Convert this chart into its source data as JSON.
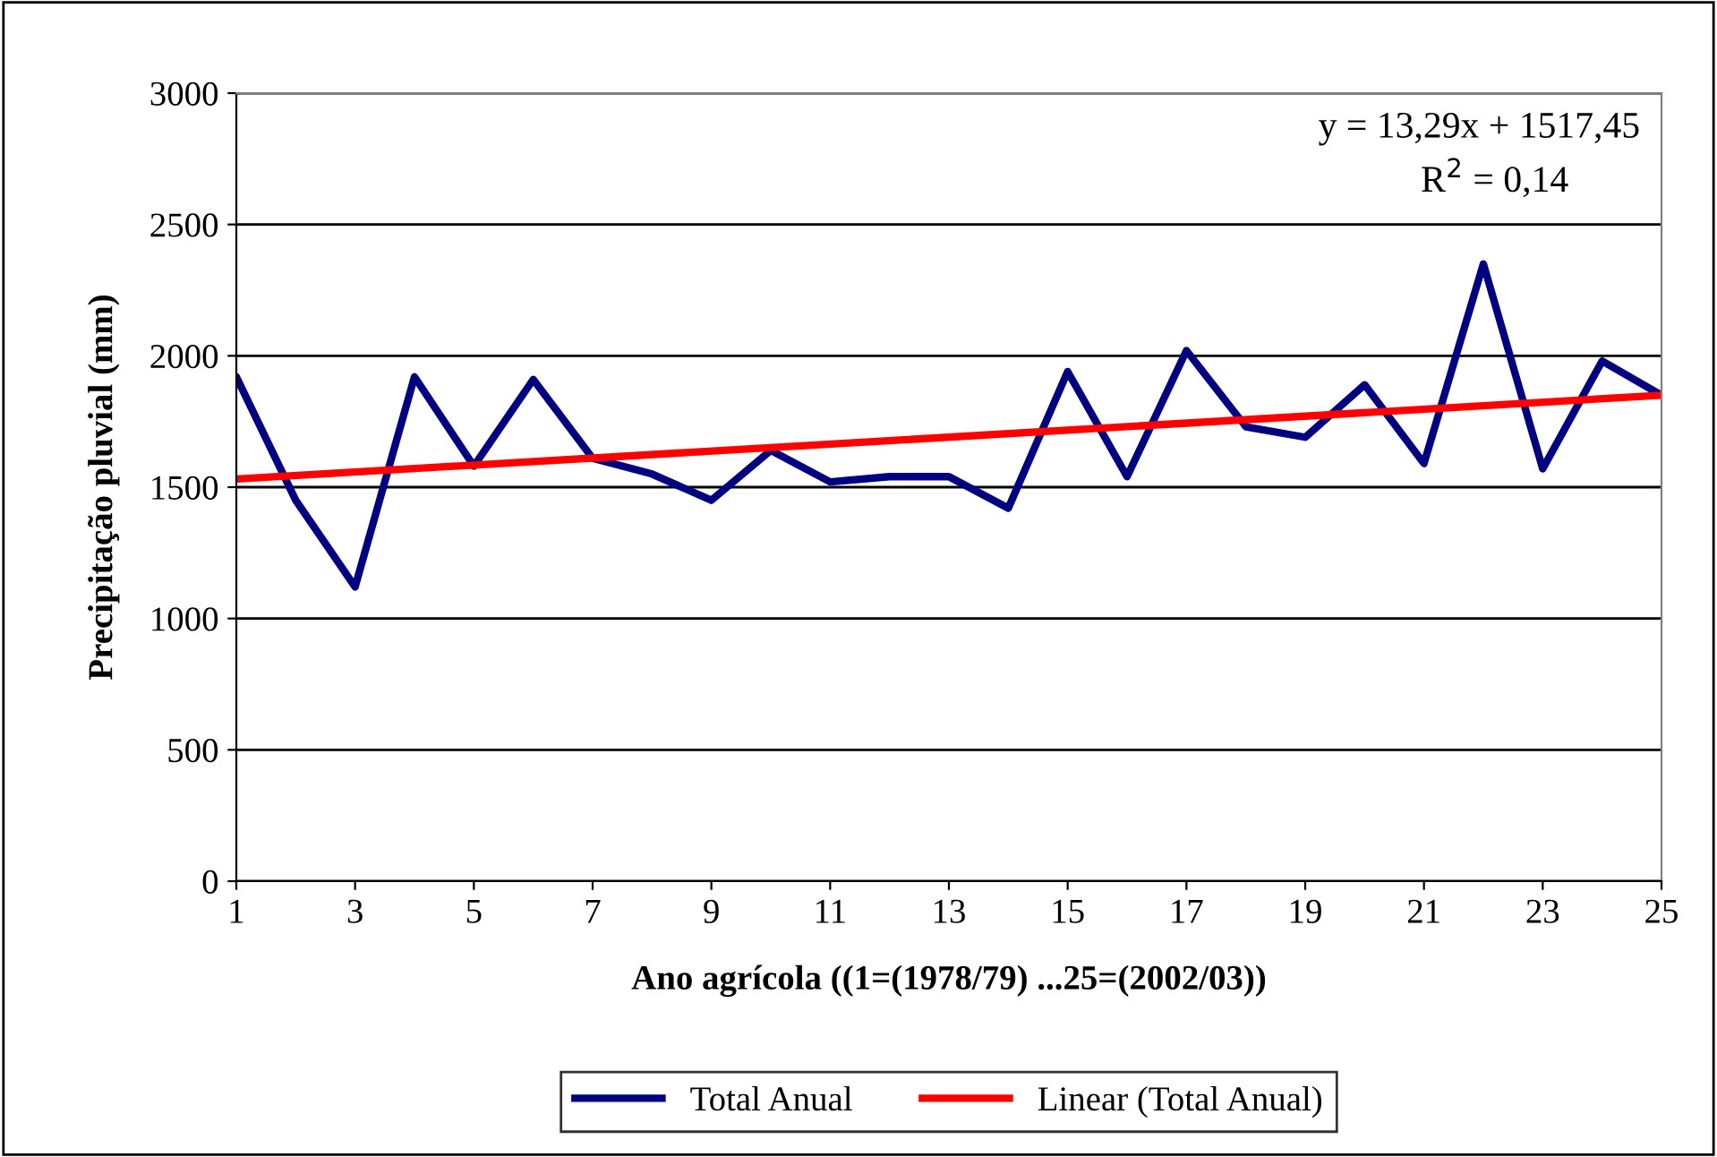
{
  "chart_data": {
    "type": "line",
    "xlabel": "Ano agrícola ((1=(1978/79) ...25=(2002/03))",
    "ylabel": "Precipitação pluvial (mm)",
    "x": [
      1,
      2,
      3,
      4,
      5,
      6,
      7,
      8,
      9,
      10,
      11,
      12,
      13,
      14,
      15,
      16,
      17,
      18,
      19,
      20,
      21,
      22,
      23,
      24,
      25
    ],
    "series": [
      {
        "name": "Total Anual",
        "color": "#000080",
        "values": [
          1920,
          1450,
          1120,
          1920,
          1580,
          1910,
          1610,
          1550,
          1450,
          1640,
          1520,
          1540,
          1540,
          1420,
          1940,
          1540,
          2020,
          1730,
          1690,
          1890,
          1590,
          2350,
          1570,
          1980,
          1850
        ]
      },
      {
        "name": "Linear (Total Anual)",
        "color": "#ff0000",
        "x": [
          1,
          25
        ],
        "values": [
          1531,
          1850
        ]
      }
    ],
    "xlim": [
      1,
      25
    ],
    "xticks": [
      1,
      3,
      5,
      7,
      9,
      11,
      13,
      15,
      17,
      19,
      21,
      23,
      25
    ],
    "ylim": [
      0,
      3000
    ],
    "yticks": [
      0,
      500,
      1000,
      1500,
      2000,
      2500,
      3000
    ],
    "annotations": [
      "y = 13,29x + 1517,45",
      "R$^{2}$ = 0,14"
    ],
    "grid": "y",
    "legend": "bottom",
    "marker": "none",
    "line_style": "solid"
  }
}
